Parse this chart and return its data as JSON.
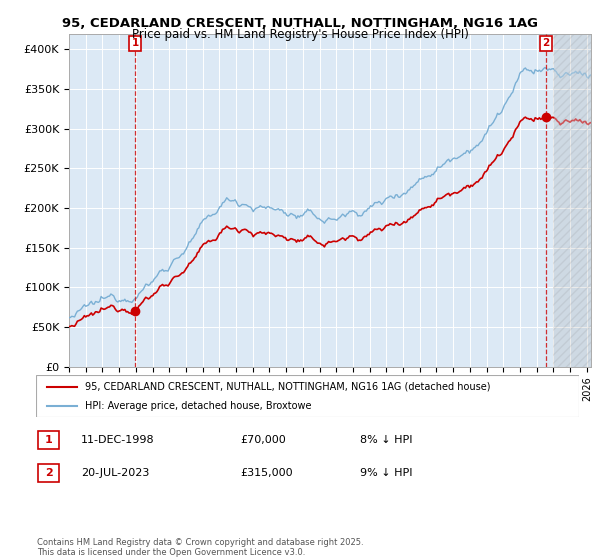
{
  "title_line1": "95, CEDARLAND CRESCENT, NUTHALL, NOTTINGHAM, NG16 1AG",
  "title_line2": "Price paid vs. HM Land Registry's House Price Index (HPI)",
  "ylim": [
    0,
    420000
  ],
  "yticks": [
    0,
    50000,
    100000,
    150000,
    200000,
    250000,
    300000,
    350000,
    400000
  ],
  "ytick_labels": [
    "£0",
    "£50K",
    "£100K",
    "£150K",
    "£200K",
    "£250K",
    "£300K",
    "£350K",
    "£400K"
  ],
  "sale1_date": "11-DEC-1998",
  "sale1_price": 70000,
  "sale1_label": "8% ↓ HPI",
  "sale2_date": "20-JUL-2023",
  "sale2_price": 315000,
  "sale2_label": "9% ↓ HPI",
  "red_color": "#cc0000",
  "blue_color": "#7AAFD4",
  "legend_label1": "95, CEDARLAND CRESCENT, NUTHALL, NOTTINGHAM, NG16 1AG (detached house)",
  "legend_label2": "HPI: Average price, detached house, Broxtowe",
  "footer": "Contains HM Land Registry data © Crown copyright and database right 2025.\nThis data is licensed under the Open Government Licence v3.0.",
  "background_color": "#ffffff",
  "plot_bg_color": "#dce9f5",
  "grid_color": "#ffffff",
  "hatch_color": "#c0c0c0"
}
